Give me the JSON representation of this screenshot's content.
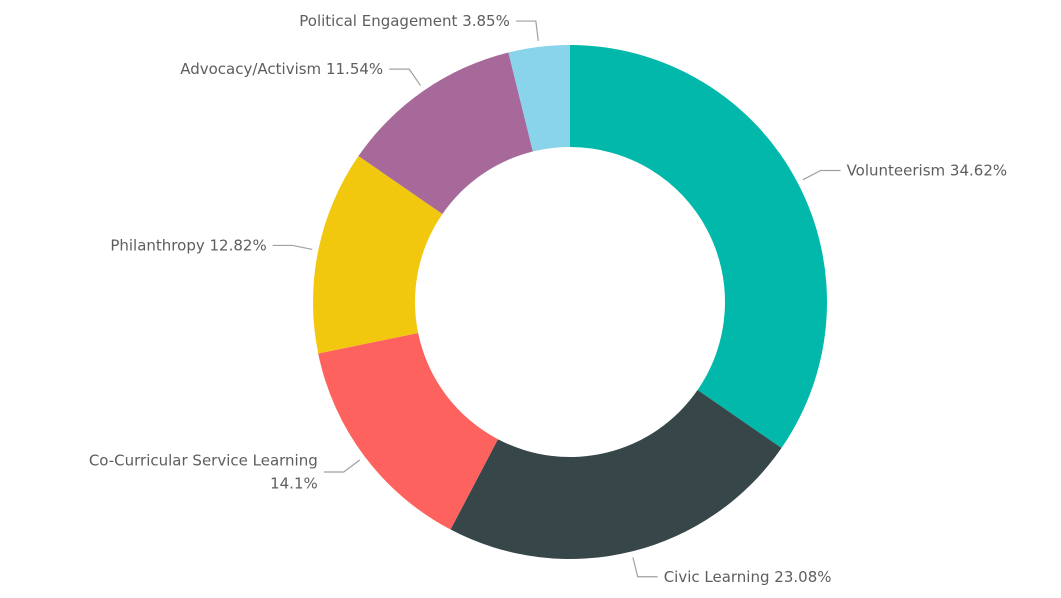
{
  "chart_data": {
    "type": "donut",
    "categories": [
      "Volunteerism",
      "Civic Learning",
      "Co-Curricular Service Learning",
      "Philanthropy",
      "Advocacy/Activism",
      "Political Engagement"
    ],
    "values": [
      34.62,
      23.08,
      14.1,
      12.82,
      11.54,
      3.85
    ],
    "value_labels": [
      "34.62%",
      "23.08%",
      "14.1%",
      "12.82%",
      "11.54%",
      "3.85%"
    ],
    "colors": [
      "#01B8AA",
      "#374649",
      "#FD625E",
      "#F2C80F",
      "#A66999",
      "#8AD4EB"
    ]
  }
}
